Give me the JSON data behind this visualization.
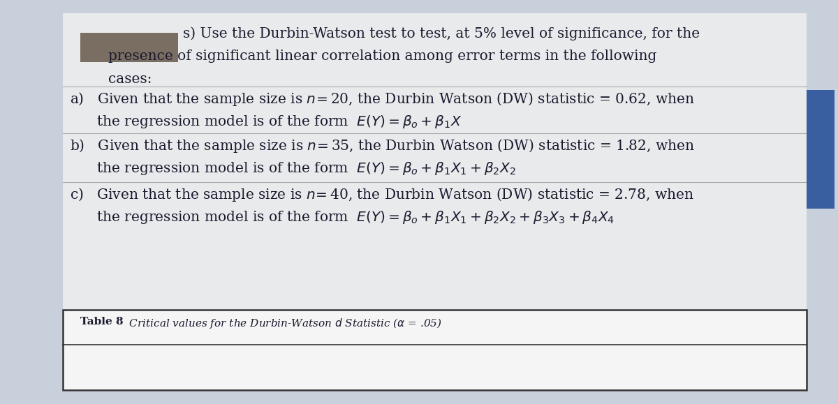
{
  "bg_color": "#c8d0dc",
  "content_bg": "#e8eaec",
  "title_line1": "s) Use the Durbin-Watson test to test, at 5% level of significance, for the",
  "title_line2": "presence of significant linear correlation among error terms in the following",
  "title_line3": "cases:",
  "item_a_line1": "a)   Given that the sample size is $n\\!=$20, the Durbin Watson (DW) statistic = 0.62, when",
  "item_a_line2": "      the regression model is of the form  $E(Y) = \\beta_o + \\beta_1 X$",
  "item_b_line1": "b)   Given that the sample size is $n\\!=$35, the Durbin Watson (DW) statistic = 1.82, when",
  "item_b_line2": "      the regression model is of the form  $E(Y) = \\beta_o + \\beta_1 X_1 + \\beta_2 X_2$",
  "item_c_line1": "c)   Given that the sample size is $n\\!=$40, the Durbin Watson (DW) statistic = 2.78, when",
  "item_c_line2": "      the regression model is of the form  $E(Y) = \\beta_o + \\beta_1 X_1 + \\beta_2 X_2 + \\beta_3 X_3 + \\beta_4 X_4$",
  "table_label": "Table 8",
  "table_text": "  Critical values for the Durbin-Watson $d$ Statistic ($\\alpha$ = .05)",
  "font_size_main": 14.5,
  "font_size_table": 11.0,
  "text_color": "#1a1a2e",
  "table_bg": "#f5f5f5",
  "redacted_color": "#7a6e62",
  "border_color": "#333333",
  "blue_tab_color": "#3a5fa0",
  "sep_line_color": "#aaaaaa"
}
